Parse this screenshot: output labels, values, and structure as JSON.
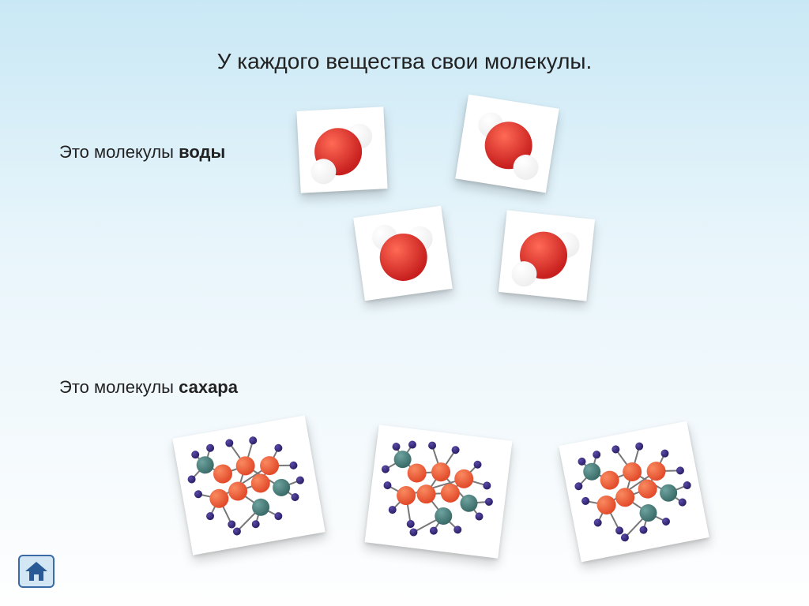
{
  "title": "У каждого вещества свои молекулы.",
  "water": {
    "prefix": "Это молекулы ",
    "bold": "воды"
  },
  "sugar": {
    "prefix": "Это молекулы   ",
    "bold": "сахара"
  },
  "colors": {
    "oxygen": "#c8201f",
    "oxygen_hi": "#ff6a55",
    "hydrogen": "#efefef",
    "hydrogen_hi": "#ffffff",
    "carbon": "#e24a2a",
    "carbon_hi": "#f98a60",
    "nitro": "#3a6b68",
    "nitro_hi": "#6ea39f",
    "small": "#2c1f66",
    "small_hi": "#5a4aa8",
    "bond": "#777",
    "nav_fill": "#d2e6f4",
    "nav_stroke": "#3a6aa8",
    "nav_arrow": "#2a5a96"
  }
}
